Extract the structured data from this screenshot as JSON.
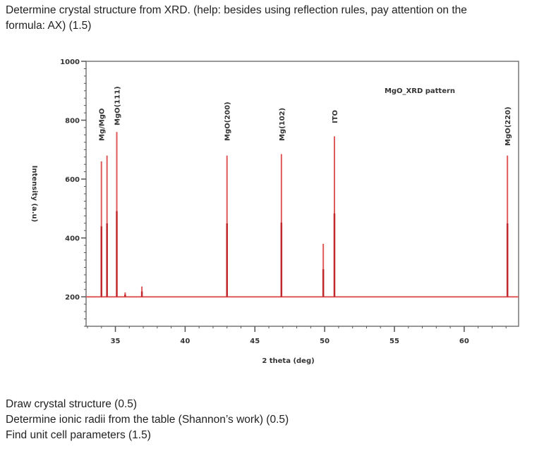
{
  "header": {
    "line1": "Determine crystal structure from XRD.  (help: besides using reflection rules, pay attention on the",
    "line2": "formula: AX) (1.5)"
  },
  "footer": {
    "items": [
      "Draw crystal structure (0.5)",
      "Determine ionic radii from the table (Shannon’s work) (0.5)",
      "Find unit cell parameters (1.5)"
    ]
  },
  "chart_data": {
    "type": "line",
    "title": "MgO_XRD pattern",
    "xlabel": "2 theta (deg)",
    "ylabel": "Intensity (a.u)",
    "xlim": [
      32.9,
      63.9
    ],
    "ylim": [
      100,
      1000
    ],
    "xticks": [
      "35",
      "40",
      "45",
      "50",
      "55",
      "60"
    ],
    "xtick_values": [
      35,
      40,
      45,
      50,
      55,
      60
    ],
    "yticks": [
      "200",
      "400",
      "600",
      "800",
      "1000"
    ],
    "ytick_values": [
      200,
      400,
      600,
      800,
      1000
    ],
    "baseline": 200,
    "line_color": "#e05a5a",
    "peaks": [
      {
        "x": 34.0,
        "y": 660
      },
      {
        "x": 34.4,
        "y": 680
      },
      {
        "x": 35.1,
        "y": 760
      },
      {
        "x": 35.7,
        "y": 215
      },
      {
        "x": 36.9,
        "y": 235
      },
      {
        "x": 43.0,
        "y": 680
      },
      {
        "x": 46.9,
        "y": 685
      },
      {
        "x": 49.9,
        "y": 380
      },
      {
        "x": 50.7,
        "y": 745
      },
      {
        "x": 63.1,
        "y": 680
      }
    ],
    "annotations": [
      {
        "text": "Mg/MgO",
        "x": 34.3
      },
      {
        "text": "MgO(111)",
        "x": 35.1
      },
      {
        "text": "MgO(200)",
        "x": 43.0
      },
      {
        "text": "Mg(102)",
        "x": 46.9
      },
      {
        "text": "ITO",
        "x": 50.7
      },
      {
        "text": "MgO(220)",
        "x": 63.1
      }
    ]
  }
}
